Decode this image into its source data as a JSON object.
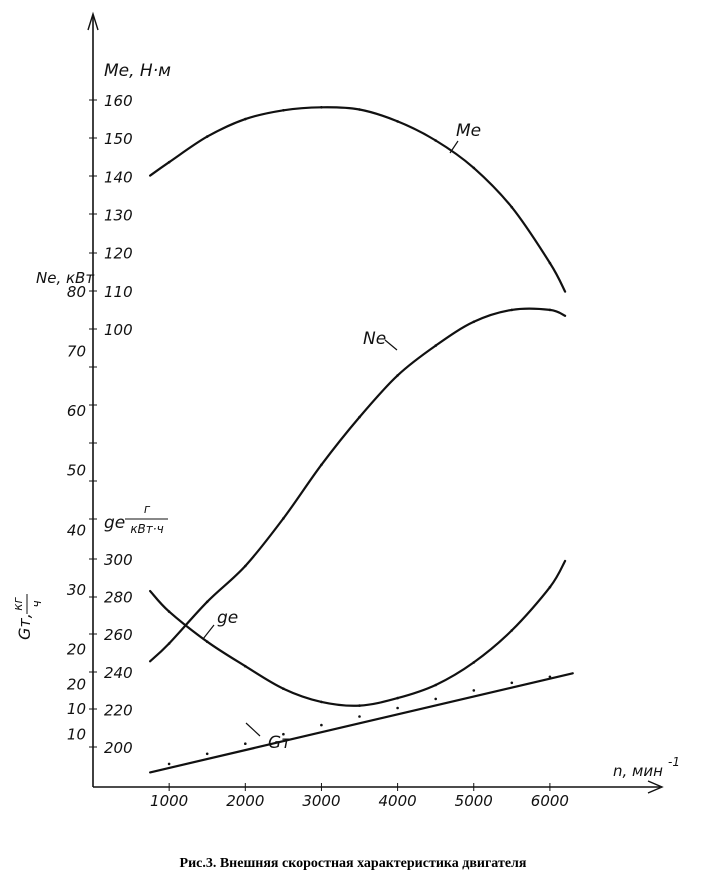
{
  "chart_data": {
    "type": "line",
    "caption": "Рис.3. Внешняя скоростная характеристика двигателя",
    "x_axis": {
      "label": "n, мин",
      "exponent": "-1",
      "ticks": [
        "1000",
        "2000",
        "3000",
        "4000",
        "5000",
        "6000"
      ],
      "range": [
        0,
        6500
      ]
    },
    "axes": {
      "Me": {
        "label": "Me, Н·м",
        "range": [
          100,
          160
        ],
        "ticks": [
          "160",
          "150",
          "140",
          "130",
          "120",
          "110",
          "100"
        ]
      },
      "Ne": {
        "label": "Ne, кВт",
        "range": [
          10,
          80
        ],
        "ticks": [
          "80",
          "70",
          "60",
          "50",
          "40",
          "30",
          "20",
          "10"
        ]
      },
      "ge": {
        "label": "ge",
        "unit_num": "г",
        "unit_den": "кВт·ч",
        "range": [
          200,
          300
        ],
        "ticks": [
          "300",
          "280",
          "260",
          "240",
          "220",
          "200"
        ]
      },
      "Gt": {
        "label": "Gт,",
        "unit_num": "кг",
        "unit_den": "ч",
        "range": [
          0,
          30
        ],
        "ticks": [
          "20",
          "10"
        ]
      }
    },
    "series": [
      {
        "name": "Me",
        "axis": "Me",
        "x": [
          750,
          1000,
          1500,
          2000,
          2500,
          3000,
          3500,
          4000,
          4500,
          5000,
          5500,
          6000,
          6200
        ],
        "values": [
          140.2,
          143.7,
          150.4,
          155.0,
          157.3,
          158.1,
          157.5,
          154.4,
          149.4,
          142.2,
          131.9,
          117.3,
          109.8
        ]
      },
      {
        "name": "Ne",
        "axis": "Ne",
        "x": [
          750,
          1000,
          1500,
          2000,
          2500,
          3000,
          3500,
          4000,
          4500,
          5000,
          5500,
          6000,
          6200
        ],
        "values": [
          18,
          21,
          28,
          34,
          42,
          51,
          59,
          66,
          71,
          75,
          77,
          77,
          76
        ]
      },
      {
        "name": "ge",
        "axis": "ge",
        "x": [
          750,
          1000,
          1500,
          2000,
          2500,
          3000,
          3500,
          4000,
          4500,
          5000,
          5500,
          6000,
          6200
        ],
        "values": [
          283,
          272,
          256,
          243,
          231,
          224,
          222,
          226,
          233,
          245,
          262,
          285,
          299
        ]
      },
      {
        "name": "Gт",
        "axis": "Gt",
        "x": [
          750,
          1000,
          1500,
          2000,
          2500,
          3000,
          3500,
          4000,
          4500,
          5000,
          5500,
          6000,
          6300
        ],
        "values": [
          2.5,
          4.2,
          6.2,
          8.2,
          10.1,
          11.9,
          13.6,
          15.3,
          17.1,
          18.8,
          20.3,
          21.5,
          22.2
        ]
      }
    ],
    "curve_labels": {
      "Me": "Me",
      "Ne": "Ne",
      "ge": "ge",
      "Gt": "Gт"
    },
    "grid": false,
    "legend": "none"
  }
}
